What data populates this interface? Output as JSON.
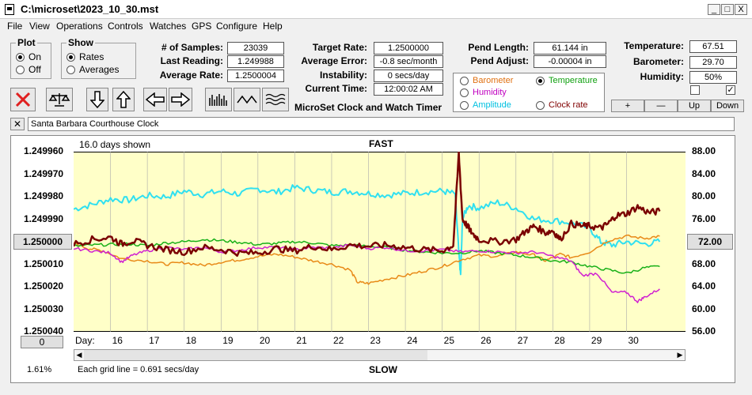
{
  "window": {
    "title": "C:\\microset\\2023_10_30.mst",
    "buttons": [
      "_",
      "□",
      "X"
    ]
  },
  "menu": [
    "File",
    "View",
    "Operations",
    "Controls",
    "Watches",
    "GPS",
    "Configure",
    "Help"
  ],
  "plot_group": {
    "label": "Plot",
    "options": [
      "On",
      "Off"
    ],
    "selected": "On"
  },
  "show_group": {
    "label": "Show",
    "options": [
      "Rates",
      "Averages"
    ],
    "selected": "Rates"
  },
  "fields": {
    "samples": {
      "label": "# of Samples:",
      "value": "23039"
    },
    "last_reading": {
      "label": "Last Reading:",
      "value": "1.249988"
    },
    "average_rate": {
      "label": "Average Rate:",
      "value": "1.2500004"
    },
    "target_rate": {
      "label": "Target Rate:",
      "value": "1.2500000"
    },
    "average_error": {
      "label": "Average Error:",
      "value": "-0.8 sec/month"
    },
    "instability": {
      "label": "Instability:",
      "value": "0 secs/day"
    },
    "current_time": {
      "label": "Current Time:",
      "value": "12:00:02 AM"
    },
    "pend_length": {
      "label": "Pend Length:",
      "value": "61.144 in"
    },
    "pend_adjust": {
      "label": "Pend Adjust:",
      "value": "-0.00004 in"
    },
    "temperature": {
      "label": "Temperature:",
      "value": "67.51"
    },
    "barometer": {
      "label": "Barometer:",
      "value": "29.70"
    },
    "humidity": {
      "label": "Humidity:",
      "value": "50%"
    }
  },
  "app_caption": "MicroSet Clock and Watch Timer",
  "toolbar_icons": [
    "cancel-icon",
    "balance-icon",
    "arrow-down-icon",
    "arrow-up-icon",
    "arrow-left-icon",
    "arrow-right-icon",
    "bar-graph-icon",
    "wave-icon",
    "multi-wave-icon"
  ],
  "plot_options": [
    {
      "label": "Barometer",
      "color": "#e07010",
      "selected": false
    },
    {
      "label": "Temperature",
      "color": "#10a010",
      "selected": true
    },
    {
      "label": "Humidity",
      "color": "#c000c0",
      "selected": false
    },
    {
      "label": "Clock rate",
      "color": "#800000",
      "selected": false
    },
    {
      "label": "Amplitude",
      "color": "#00c0e0",
      "selected": false
    }
  ],
  "scale_buttons": [
    "+",
    "—",
    "Up",
    "Down"
  ],
  "checkboxes": [
    {
      "checked": false
    },
    {
      "checked": true
    }
  ],
  "clock_name": "Santa Barbara Courthouse Clock",
  "chart_data": {
    "type": "line",
    "top_label": "FAST",
    "bottom_label": "SLOW",
    "days_shown": "16.0 days shown",
    "grid_note": "Each grid line = 0.691 secs/day",
    "left_percent": "1.61%",
    "x_label": "Day:",
    "x_ticks": [
      "16",
      "17",
      "18",
      "19",
      "20",
      "21",
      "22",
      "23",
      "24",
      "25",
      "26",
      "27",
      "28",
      "29",
      "30"
    ],
    "xlim": [
      15.0,
      31.6
    ],
    "y_left_ticks": [
      "1.249960",
      "1.249970",
      "1.249980",
      "1.249990",
      "1.250000",
      "1.250010",
      "1.250020",
      "1.250030",
      "1.250040"
    ],
    "y_left_range": [
      1.24996,
      1.25004
    ],
    "y_left_inverted": true,
    "y_right_ticks": [
      "88.00",
      "84.00",
      "80.00",
      "76.00",
      "72.00",
      "68.00",
      "64.00",
      "60.00",
      "56.00"
    ],
    "y_right_range": [
      56,
      88
    ],
    "left_button": "1.250000",
    "right_button": "72.00",
    "bottom_left_button": "0",
    "series": [
      {
        "name": "Amplitude",
        "color": "#30e0f0",
        "width": 2,
        "axis": "right",
        "x": [
          15.0,
          15.5,
          16.0,
          16.5,
          17.0,
          17.5,
          18.0,
          18.5,
          19.0,
          19.5,
          20.0,
          20.5,
          21.0,
          21.5,
          22.0,
          22.5,
          23.0,
          23.5,
          24.0,
          24.5,
          25.0,
          25.35,
          25.45,
          25.5,
          25.55,
          25.7,
          26.0,
          26.5,
          27.0,
          27.5,
          28.0,
          28.5,
          29.0,
          29.3,
          29.6,
          30.0,
          30.5,
          30.9
        ],
        "y": [
          77.8,
          78.6,
          79.6,
          79.4,
          80.2,
          80.0,
          81.0,
          80.4,
          81.0,
          80.5,
          81.4,
          80.8,
          81.6,
          81.2,
          80.8,
          81.0,
          80.6,
          80.3,
          80.6,
          80.9,
          81.0,
          80.5,
          70.0,
          66.0,
          76.0,
          78.4,
          78.0,
          79.0,
          78.0,
          76.0,
          75.8,
          75.4,
          74.4,
          72.0,
          71.4,
          72.0,
          71.6,
          72.0
        ]
      },
      {
        "name": "Barometer",
        "color": "#e88a18",
        "width": 1.5,
        "axis": "right",
        "x": [
          15.0,
          15.4,
          15.8,
          16.3,
          17.0,
          17.5,
          18.0,
          18.5,
          19.0,
          19.5,
          20.0,
          20.5,
          21.0,
          21.5,
          22.0,
          22.5,
          22.7,
          23.0,
          23.5,
          24.0,
          24.5,
          25.0,
          25.5,
          26.0,
          26.5,
          27.0,
          27.5,
          27.8,
          28.2,
          28.5,
          29.0,
          29.5,
          30.0,
          30.5,
          30.9
        ],
        "y": [
          71.8,
          70.8,
          70.4,
          69.0,
          68.6,
          68.0,
          68.3,
          67.8,
          68.4,
          68.8,
          69.4,
          69.8,
          69.3,
          68.6,
          68.0,
          67.0,
          64.8,
          64.6,
          65.4,
          66.0,
          66.8,
          67.6,
          68.8,
          69.6,
          69.4,
          70.2,
          69.6,
          68.6,
          69.8,
          69.2,
          70.2,
          72.2,
          73.0,
          72.6,
          73.0
        ]
      },
      {
        "name": "Temperature",
        "color": "#18b018",
        "width": 1.5,
        "axis": "right",
        "x": [
          15.0,
          15.5,
          16.0,
          16.5,
          17.0,
          17.5,
          18.0,
          18.5,
          19.0,
          19.5,
          20.0,
          20.5,
          21.0,
          21.5,
          22.0,
          22.5,
          23.0,
          23.5,
          24.0,
          24.5,
          25.0,
          25.5,
          26.0,
          26.5,
          27.0,
          27.5,
          28.0,
          28.5,
          29.0,
          29.5,
          30.0,
          30.5,
          30.9
        ],
        "y": [
          71.2,
          71.4,
          71.5,
          71.6,
          71.3,
          71.8,
          72.0,
          72.4,
          72.2,
          71.9,
          71.5,
          71.7,
          72.0,
          71.8,
          71.3,
          71.4,
          71.2,
          71.0,
          70.5,
          70.2,
          70.0,
          70.0,
          70.4,
          70.0,
          69.6,
          69.2,
          68.6,
          68.4,
          67.6,
          67.0,
          66.4,
          67.4,
          67.6
        ]
      },
      {
        "name": "Humidity",
        "color": "#d020d0",
        "width": 1.5,
        "axis": "right",
        "x": [
          15.0,
          15.5,
          16.0,
          16.3,
          16.6,
          17.0,
          17.5,
          18.0,
          18.5,
          19.0,
          19.5,
          20.0,
          20.5,
          21.0,
          21.5,
          22.0,
          22.5,
          23.0,
          23.5,
          24.0,
          24.5,
          25.0,
          25.5,
          26.0,
          26.5,
          27.0,
          27.5,
          28.0,
          28.5,
          28.8,
          29.2,
          29.6,
          30.0,
          30.3,
          30.5,
          30.9
        ],
        "y": [
          70.8,
          70.4,
          70.0,
          68.4,
          69.6,
          70.4,
          71.0,
          70.6,
          71.0,
          70.2,
          70.5,
          71.0,
          71.0,
          70.6,
          71.0,
          70.9,
          71.4,
          70.8,
          71.0,
          70.4,
          70.4,
          70.6,
          70.2,
          70.4,
          70.2,
          70.0,
          70.2,
          69.4,
          68.6,
          66.0,
          66.4,
          63.0,
          63.0,
          61.4,
          62.2,
          63.6
        ]
      },
      {
        "name": "Clock rate",
        "color": "#7a0000",
        "width": 2.5,
        "axis": "right",
        "x": [
          15.0,
          15.5,
          16.0,
          16.3,
          16.6,
          17.0,
          17.5,
          18.0,
          18.5,
          19.0,
          19.5,
          20.0,
          20.5,
          21.0,
          21.5,
          22.0,
          22.5,
          23.0,
          23.5,
          24.0,
          24.5,
          25.0,
          25.3,
          25.45,
          25.55,
          25.7,
          25.8,
          26.0,
          26.5,
          27.0,
          27.3,
          27.5,
          27.8,
          28.0,
          28.2,
          28.5,
          28.8,
          29.0,
          29.3,
          29.5,
          29.7,
          30.0,
          30.3,
          30.6,
          30.9
        ],
        "y": [
          71.6,
          72.4,
          72.8,
          71.6,
          72.2,
          71.4,
          70.6,
          70.2,
          71.0,
          70.6,
          70.0,
          70.0,
          70.8,
          70.4,
          71.2,
          70.6,
          71.4,
          71.2,
          71.4,
          71.0,
          70.6,
          70.4,
          71.4,
          87.6,
          76.0,
          74.6,
          73.6,
          72.4,
          72.0,
          72.4,
          74.0,
          74.8,
          73.6,
          74.0,
          72.4,
          75.2,
          74.8,
          74.8,
          74.4,
          75.2,
          76.6,
          77.0,
          78.2,
          77.2,
          77.4
        ]
      }
    ]
  }
}
